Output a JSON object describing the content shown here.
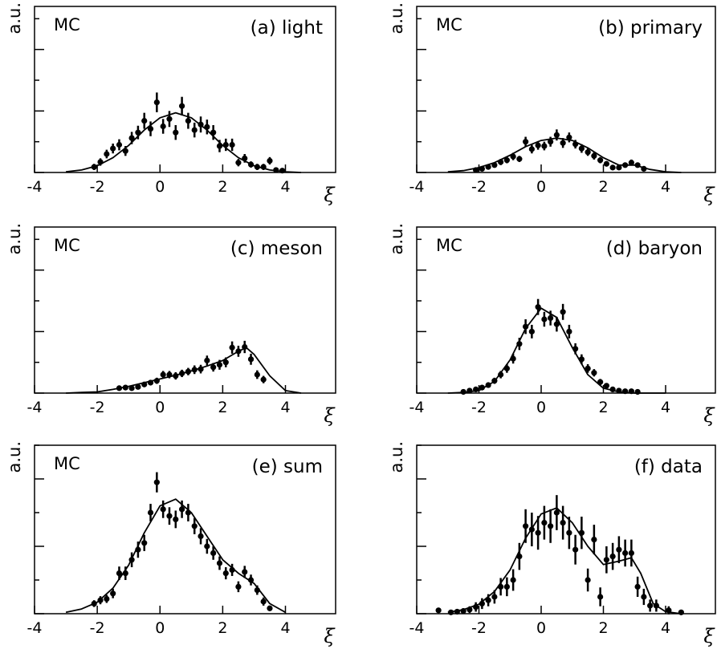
{
  "chart_data": [
    {
      "type": "scatter",
      "title": "(a) light",
      "annotation": "MC",
      "ylabel": "a.u.",
      "xlabel": "ξ",
      "xlim": [
        -4,
        5.6
      ],
      "xticks": [
        -4,
        -2,
        0,
        2,
        4
      ],
      "ylim": [
        0,
        2.7
      ],
      "yticks": [
        0,
        0.5,
        1,
        1.5,
        2,
        2.5
      ],
      "points": {
        "x": [
          -2.1,
          -1.9,
          -1.7,
          -1.5,
          -1.3,
          -1.1,
          -0.9,
          -0.7,
          -0.5,
          -0.3,
          -0.1,
          0.1,
          0.3,
          0.5,
          0.7,
          0.9,
          1.1,
          1.3,
          1.5,
          1.7,
          1.9,
          2.1,
          2.3,
          2.5,
          2.7,
          2.9,
          3.1,
          3.3,
          3.5,
          3.7,
          3.9
        ],
        "y": [
          0.09,
          0.17,
          0.3,
          0.39,
          0.45,
          0.35,
          0.56,
          0.65,
          0.84,
          0.71,
          1.14,
          0.75,
          0.87,
          0.65,
          1.08,
          0.84,
          0.69,
          0.78,
          0.74,
          0.65,
          0.43,
          0.45,
          0.45,
          0.16,
          0.23,
          0.13,
          0.09,
          0.09,
          0.19,
          0.04,
          0.03
        ],
        "yerr": [
          0.05,
          0.06,
          0.07,
          0.08,
          0.09,
          0.08,
          0.1,
          0.11,
          0.13,
          0.12,
          0.16,
          0.12,
          0.13,
          0.12,
          0.15,
          0.13,
          0.12,
          0.13,
          0.12,
          0.12,
          0.1,
          0.1,
          0.1,
          0.06,
          0.07,
          0.05,
          0.05,
          0.05,
          0.06,
          0.03,
          0.03
        ]
      },
      "curve": {
        "x": [
          -3,
          -2.5,
          -2,
          -1.5,
          -1,
          -0.5,
          0,
          0.5,
          1,
          1.5,
          2,
          2.5,
          3,
          3.5,
          4,
          4.5
        ],
        "y": [
          0.01,
          0.04,
          0.11,
          0.24,
          0.44,
          0.69,
          0.89,
          0.97,
          0.89,
          0.69,
          0.44,
          0.24,
          0.11,
          0.04,
          0.01,
          0
        ]
      }
    },
    {
      "type": "scatter",
      "title": "(b) primary",
      "annotation": "MC",
      "ylabel": "a.u.",
      "xlabel": "ξ",
      "xlim": [
        -4,
        5.6
      ],
      "xticks": [
        -4,
        -2,
        0,
        2,
        4
      ],
      "ylim": [
        0,
        2.7
      ],
      "yticks": [
        0,
        0.5,
        1,
        1.5,
        2,
        2.5
      ],
      "points": {
        "x": [
          -2.1,
          -1.9,
          -1.7,
          -1.5,
          -1.3,
          -1.1,
          -0.9,
          -0.7,
          -0.5,
          -0.3,
          -0.1,
          0.1,
          0.3,
          0.5,
          0.7,
          0.9,
          1.1,
          1.3,
          1.5,
          1.7,
          1.9,
          2.1,
          2.3,
          2.5,
          2.7,
          2.9,
          3.1,
          3.3
        ],
        "y": [
          0.04,
          0.06,
          0.09,
          0.12,
          0.17,
          0.2,
          0.26,
          0.22,
          0.5,
          0.38,
          0.44,
          0.43,
          0.5,
          0.61,
          0.48,
          0.57,
          0.46,
          0.39,
          0.33,
          0.27,
          0.2,
          0.14,
          0.08,
          0.08,
          0.12,
          0.16,
          0.12,
          0.06
        ],
        "yerr": [
          0.03,
          0.03,
          0.04,
          0.04,
          0.05,
          0.05,
          0.06,
          0.05,
          0.08,
          0.07,
          0.07,
          0.07,
          0.08,
          0.09,
          0.08,
          0.08,
          0.07,
          0.07,
          0.06,
          0.06,
          0.05,
          0.04,
          0.04,
          0.04,
          0.04,
          0.05,
          0.04,
          0.03
        ]
      },
      "curve": {
        "x": [
          -3,
          -2.5,
          -2,
          -1.5,
          -1,
          -0.5,
          0,
          0.5,
          1,
          1.5,
          2,
          2.5,
          3,
          3.5,
          4,
          4.5
        ],
        "y": [
          0.01,
          0.03,
          0.08,
          0.16,
          0.28,
          0.42,
          0.52,
          0.56,
          0.52,
          0.4,
          0.24,
          0.12,
          0.12,
          0.05,
          0.01,
          0
        ]
      }
    },
    {
      "type": "scatter",
      "title": "(c) meson",
      "annotation": "MC",
      "ylabel": "a.u.",
      "xlabel": "ξ",
      "xlim": [
        -4,
        5.6
      ],
      "xticks": [
        -4,
        -2,
        0,
        2,
        4
      ],
      "ylim": [
        0,
        2.7
      ],
      "yticks": [
        0,
        0.5,
        1,
        1.5,
        2,
        2.5
      ],
      "points": {
        "x": [
          -1.3,
          -1.1,
          -0.9,
          -0.7,
          -0.5,
          -0.3,
          -0.1,
          0.1,
          0.3,
          0.5,
          0.7,
          0.9,
          1.1,
          1.3,
          1.5,
          1.7,
          1.9,
          2.1,
          2.3,
          2.5,
          2.7,
          2.9,
          3.1,
          3.3
        ],
        "y": [
          0.08,
          0.09,
          0.08,
          0.1,
          0.14,
          0.17,
          0.2,
          0.3,
          0.3,
          0.28,
          0.32,
          0.35,
          0.38,
          0.39,
          0.53,
          0.42,
          0.46,
          0.5,
          0.74,
          0.68,
          0.75,
          0.55,
          0.3,
          0.22
        ],
        "yerr": [
          0.03,
          0.03,
          0.03,
          0.04,
          0.04,
          0.04,
          0.05,
          0.06,
          0.06,
          0.06,
          0.06,
          0.06,
          0.07,
          0.07,
          0.08,
          0.07,
          0.08,
          0.08,
          0.1,
          0.09,
          0.1,
          0.09,
          0.07,
          0.06
        ]
      },
      "curve": {
        "x": [
          -3,
          -2.5,
          -2,
          -1.5,
          -1,
          -0.5,
          0,
          0.5,
          1,
          1.5,
          2,
          2.5,
          2.75,
          3,
          3.5,
          4,
          4.5
        ],
        "y": [
          0,
          0.01,
          0.02,
          0.06,
          0.11,
          0.17,
          0.23,
          0.29,
          0.36,
          0.44,
          0.53,
          0.68,
          0.74,
          0.63,
          0.28,
          0.04,
          0
        ]
      }
    },
    {
      "type": "scatter",
      "title": "(d) baryon",
      "annotation": "MC",
      "ylabel": "a.u.",
      "xlabel": "ξ",
      "xlim": [
        -4,
        5.6
      ],
      "xticks": [
        -4,
        -2,
        0,
        2,
        4
      ],
      "ylim": [
        0,
        2.7
      ],
      "yticks": [
        0,
        0.5,
        1,
        1.5,
        2,
        2.5
      ],
      "points": {
        "x": [
          -2.5,
          -2.3,
          -2.1,
          -1.9,
          -1.7,
          -1.5,
          -1.3,
          -1.1,
          -0.9,
          -0.7,
          -0.5,
          -0.3,
          -0.1,
          0.1,
          0.3,
          0.5,
          0.7,
          0.9,
          1.1,
          1.3,
          1.5,
          1.7,
          1.9,
          2.1,
          2.3,
          2.5,
          2.7,
          2.9,
          3.1
        ],
        "y": [
          0.02,
          0.04,
          0.06,
          0.09,
          0.13,
          0.2,
          0.3,
          0.4,
          0.56,
          0.8,
          1.08,
          1.0,
          1.4,
          1.2,
          1.22,
          1.12,
          1.32,
          1.0,
          0.72,
          0.55,
          0.4,
          0.33,
          0.18,
          0.12,
          0.06,
          0.04,
          0.03,
          0.03,
          0.02
        ],
        "yerr": [
          0.02,
          0.02,
          0.03,
          0.03,
          0.04,
          0.05,
          0.06,
          0.07,
          0.08,
          0.1,
          0.12,
          0.11,
          0.13,
          0.12,
          0.12,
          0.12,
          0.13,
          0.11,
          0.09,
          0.08,
          0.07,
          0.06,
          0.05,
          0.04,
          0.03,
          0.03,
          0.02,
          0.02,
          0.02
        ]
      },
      "curve": {
        "x": [
          -3,
          -2.5,
          -2,
          -1.5,
          -1,
          -0.5,
          0,
          0.5,
          1,
          1.5,
          2,
          2.5,
          3,
          3.5,
          4
        ],
        "y": [
          0,
          0.01,
          0.04,
          0.19,
          0.54,
          1.05,
          1.38,
          1.23,
          0.74,
          0.3,
          0.08,
          0.02,
          0,
          0,
          0
        ]
      }
    },
    {
      "type": "scatter",
      "title": "(e) sum",
      "annotation": "MC",
      "ylabel": "a.u.",
      "xlabel": "ξ",
      "xlim": [
        -4,
        5.6
      ],
      "xticks": [
        -4,
        -2,
        0,
        2,
        4
      ],
      "ylim": [
        0,
        2.5
      ],
      "yticks": [
        0,
        0.5,
        1,
        1.5,
        2,
        2.5
      ],
      "points": {
        "x": [
          -2.1,
          -1.9,
          -1.7,
          -1.5,
          -1.3,
          -1.1,
          -0.9,
          -0.7,
          -0.5,
          -0.3,
          -0.1,
          0.1,
          0.3,
          0.5,
          0.7,
          0.9,
          1.1,
          1.3,
          1.5,
          1.7,
          1.9,
          2.1,
          2.3,
          2.5,
          2.7,
          2.9,
          3.1,
          3.3,
          3.5
        ],
        "y": [
          0.15,
          0.2,
          0.22,
          0.3,
          0.6,
          0.6,
          0.8,
          0.95,
          1.05,
          1.5,
          1.95,
          1.55,
          1.45,
          1.4,
          1.55,
          1.5,
          1.3,
          1.15,
          1.0,
          0.9,
          0.75,
          0.6,
          0.65,
          0.4,
          0.62,
          0.5,
          0.35,
          0.18,
          0.08
        ],
        "yerr": [
          0.05,
          0.06,
          0.06,
          0.07,
          0.1,
          0.1,
          0.11,
          0.12,
          0.12,
          0.13,
          0.15,
          0.13,
          0.13,
          0.13,
          0.13,
          0.13,
          0.12,
          0.12,
          0.11,
          0.1,
          0.1,
          0.09,
          0.09,
          0.08,
          0.09,
          0.08,
          0.07,
          0.06,
          0.04
        ]
      },
      "curve": {
        "x": [
          -3,
          -2.5,
          -2,
          -1.5,
          -1,
          -0.5,
          0,
          0.5,
          1,
          1.5,
          2,
          2.5,
          3,
          3.5,
          4
        ],
        "y": [
          0.02,
          0.07,
          0.17,
          0.38,
          0.72,
          1.2,
          1.6,
          1.7,
          1.5,
          1.15,
          0.8,
          0.6,
          0.45,
          0.15,
          0.02
        ]
      }
    },
    {
      "type": "scatter",
      "title": "(f) data",
      "ylabel": "a.u.",
      "xlabel": "ξ",
      "xlim": [
        -4,
        5.6
      ],
      "xticks": [
        -4,
        -2,
        0,
        2,
        4
      ],
      "ylim": [
        0,
        2.5
      ],
      "yticks": [
        0,
        0.5,
        1,
        1.5,
        2,
        2.5
      ],
      "points": {
        "x": [
          -3.3,
          -2.9,
          -2.7,
          -2.5,
          -2.3,
          -2.1,
          -1.9,
          -1.7,
          -1.5,
          -1.3,
          -1.1,
          -0.9,
          -0.7,
          -0.5,
          -0.3,
          -0.1,
          0.1,
          0.3,
          0.5,
          0.7,
          0.9,
          1.1,
          1.3,
          1.5,
          1.7,
          1.9,
          2.1,
          2.3,
          2.5,
          2.7,
          2.9,
          3.1,
          3.3,
          3.5,
          3.7,
          4.1,
          4.5
        ],
        "y": [
          0.05,
          0.02,
          0.03,
          0.04,
          0.06,
          0.1,
          0.15,
          0.2,
          0.25,
          0.4,
          0.4,
          0.5,
          0.85,
          1.3,
          1.25,
          1.2,
          1.35,
          1.3,
          1.5,
          1.35,
          1.2,
          0.95,
          1.2,
          0.5,
          1.1,
          0.25,
          0.8,
          0.85,
          0.95,
          0.9,
          0.9,
          0.4,
          0.25,
          0.12,
          0.12,
          0.05,
          0.02
        ],
        "yerr": [
          0.04,
          0.03,
          0.03,
          0.04,
          0.05,
          0.07,
          0.08,
          0.09,
          0.1,
          0.13,
          0.14,
          0.16,
          0.2,
          0.25,
          0.25,
          0.25,
          0.25,
          0.25,
          0.26,
          0.25,
          0.24,
          0.22,
          0.24,
          0.17,
          0.22,
          0.14,
          0.2,
          0.2,
          0.2,
          0.2,
          0.2,
          0.15,
          0.12,
          0.09,
          0.09,
          0.06,
          0.04
        ]
      },
      "curve": {
        "x": [
          -3,
          -2.5,
          -2,
          -1.5,
          -1,
          -0.5,
          0,
          0.5,
          1,
          1.5,
          2,
          2.5,
          2.9,
          3.2,
          3.6,
          4,
          4.5
        ],
        "y": [
          0.02,
          0.06,
          0.14,
          0.33,
          0.65,
          1.12,
          1.48,
          1.57,
          1.35,
          1.0,
          0.73,
          0.78,
          0.83,
          0.6,
          0.15,
          0.03,
          0
        ]
      }
    }
  ]
}
